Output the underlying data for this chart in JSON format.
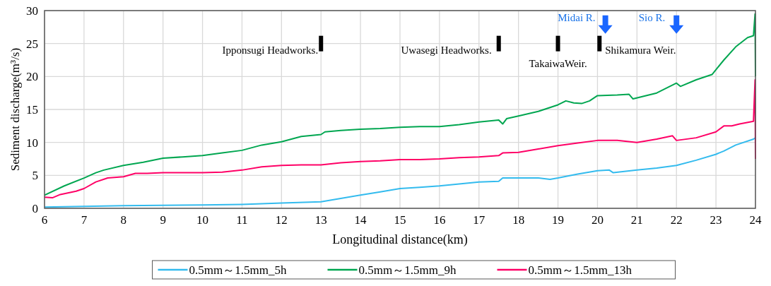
{
  "chart_data": {
    "type": "line",
    "xlabel": "Longitudinal distance(km)",
    "ylabel": "Sediment discharge(m³/s)",
    "xlim": [
      6,
      24
    ],
    "xticks": [
      6,
      7,
      8,
      9,
      10,
      11,
      12,
      13,
      14,
      15,
      16,
      17,
      18,
      19,
      20,
      21,
      22,
      23,
      24
    ],
    "ylim": [
      0,
      30
    ],
    "yticks": [
      0,
      5,
      10,
      15,
      20,
      25,
      30
    ],
    "grid": true,
    "legend": "bottom",
    "series": [
      {
        "name": "0.5mm～1.5mm_5h",
        "color": "#33bbee",
        "x": [
          6,
          8,
          10,
          11,
          12,
          13,
          13.5,
          14,
          14.5,
          15,
          15.5,
          16,
          16.5,
          17,
          17.5,
          17.6,
          18,
          18.5,
          18.8,
          19,
          19.5,
          20,
          20.3,
          20.4,
          21,
          21.5,
          22,
          22.5,
          23,
          23.2,
          23.5,
          23.95,
          24
        ],
        "values": [
          0.2,
          0.4,
          0.5,
          0.6,
          0.8,
          1.0,
          1.5,
          2.0,
          2.5,
          3.0,
          3.2,
          3.4,
          3.7,
          4.0,
          4.1,
          4.6,
          4.6,
          4.6,
          4.4,
          4.6,
          5.2,
          5.7,
          5.8,
          5.4,
          5.8,
          6.1,
          6.5,
          7.3,
          8.2,
          8.7,
          9.6,
          10.5,
          10.7
        ]
      },
      {
        "name": "0.5mm～1.5mm_9h",
        "color": "#00a650",
        "x": [
          6,
          6.5,
          7,
          7.3,
          7.5,
          8,
          8.5,
          9,
          9.5,
          10,
          10.5,
          11,
          11.5,
          12,
          12.5,
          13,
          13.1,
          13.5,
          14,
          14.5,
          15,
          15.5,
          16,
          16.5,
          17,
          17.5,
          17.6,
          17.7,
          18,
          18.5,
          19,
          19.2,
          19.4,
          19.6,
          19.8,
          20,
          20.5,
          20.8,
          20.9,
          21.5,
          22,
          22.1,
          22.5,
          22.9,
          23.2,
          23.5,
          23.8,
          23.95,
          23.99,
          24
        ],
        "values": [
          2.0,
          3.4,
          4.6,
          5.4,
          5.8,
          6.5,
          7.0,
          7.6,
          7.8,
          8.0,
          8.4,
          8.8,
          9.6,
          10.1,
          10.9,
          11.2,
          11.6,
          11.8,
          12.0,
          12.1,
          12.3,
          12.4,
          12.4,
          12.7,
          13.1,
          13.4,
          12.8,
          13.6,
          14.0,
          14.7,
          15.7,
          16.3,
          16.0,
          15.9,
          16.3,
          17.1,
          17.2,
          17.3,
          16.6,
          17.5,
          19.0,
          18.5,
          19.5,
          20.3,
          22.5,
          24.5,
          25.9,
          26.2,
          29.5,
          20.0
        ]
      },
      {
        "name": "0.5mm～1.5mm_13h",
        "color": "#ff0066",
        "x": [
          6,
          6.2,
          6.4,
          6.8,
          7,
          7.3,
          7.6,
          8,
          8.3,
          8.6,
          9,
          9.5,
          10,
          10.5,
          11,
          11.5,
          12,
          12.5,
          13,
          13.5,
          14,
          14.5,
          15,
          15.5,
          16,
          16.5,
          17,
          17.5,
          17.6,
          18,
          18.5,
          19,
          19.5,
          20,
          20.5,
          21,
          21.5,
          21.9,
          22,
          22.5,
          23,
          23.2,
          23.4,
          23.6,
          23.95,
          23.99,
          24
        ],
        "values": [
          1.7,
          1.6,
          2.1,
          2.6,
          3.0,
          4.0,
          4.6,
          4.8,
          5.3,
          5.3,
          5.4,
          5.4,
          5.4,
          5.5,
          5.8,
          6.3,
          6.5,
          6.6,
          6.6,
          6.9,
          7.1,
          7.2,
          7.4,
          7.4,
          7.5,
          7.7,
          7.8,
          8.0,
          8.4,
          8.5,
          9.0,
          9.5,
          9.9,
          10.3,
          10.3,
          10.0,
          10.5,
          11.0,
          10.3,
          10.7,
          11.6,
          12.5,
          12.5,
          12.8,
          13.2,
          19.5,
          7.5
        ]
      }
    ],
    "annotations": [
      "Ipponsugi Headworks.",
      "Uwasegi Headworks.",
      "TakaiwaWeir.",
      "Shikamura Weir.",
      {
        "text": "Midai R.",
        "x": 20.2,
        "y": 28
      },
      {
        "text": "Sio R.",
        "x": 22,
        "y": 28
      }
    ]
  }
}
